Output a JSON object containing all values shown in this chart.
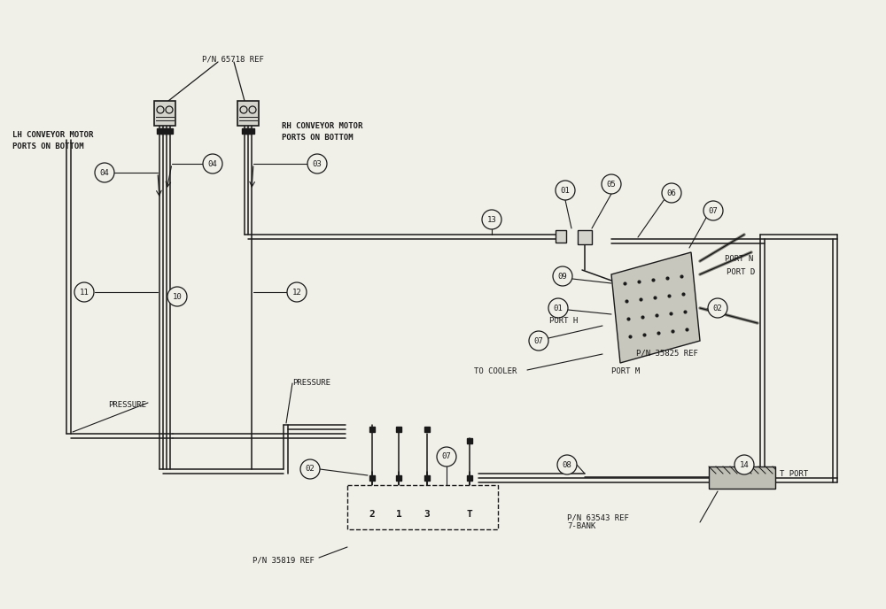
{
  "bg_color": "#f0efe8",
  "line_color": "#1a1a1a",
  "labels": {
    "lh_motor": "LH CONVEYOR MOTOR\nPORTS ON BOTTOM",
    "rh_motor": "RH CONVEYOR MOTOR\nPORTS ON BOTTOM",
    "pn_65718": "P/N 65718 REF",
    "pn_35819": "P/N 35819 REF",
    "pn_35825": "P/N 35825 REF",
    "pn_63543": "P/N 63543 REF\n7-BANK",
    "pressure1": "PRESSURE",
    "pressure2": "PRESSURE",
    "to_cooler": "TO COOLER",
    "port_n": "PORT N",
    "port_d": "PORT D",
    "port_h": "PORT H",
    "port_m": "PORT M",
    "t_port": "T PORT"
  }
}
